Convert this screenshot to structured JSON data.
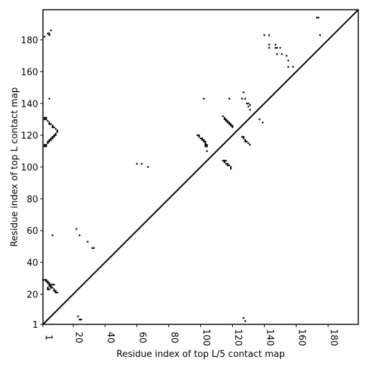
{
  "chart_data": {
    "type": "heatmap",
    "subtype": "contact-map",
    "xlabel": "Residue index of top L/5 contact map",
    "ylabel": "Residue index of top L contact map",
    "xlim": [
      1,
      199
    ],
    "ylim": [
      1,
      199
    ],
    "xticks": [
      1,
      20,
      40,
      60,
      80,
      100,
      120,
      140,
      160,
      180
    ],
    "yticks": [
      1,
      20,
      40,
      60,
      80,
      100,
      120,
      140,
      160,
      180
    ],
    "x_tick_rotation_deg": 90,
    "grid": false,
    "diagonal_line": true,
    "cell_color": "#000000",
    "series": [
      {
        "region": "above-diagonal",
        "points": [
          [
            2,
            131
          ],
          [
            3,
            131
          ],
          [
            2,
            130
          ],
          [
            3,
            130
          ],
          [
            4,
            129
          ],
          [
            5,
            128
          ],
          [
            5,
            127
          ],
          [
            6,
            127
          ],
          [
            7,
            126
          ],
          [
            7,
            125
          ],
          [
            8,
            125
          ],
          [
            9,
            124
          ],
          [
            10,
            123
          ],
          [
            2,
            114
          ],
          [
            2,
            113
          ],
          [
            3,
            113
          ],
          [
            3,
            114
          ],
          [
            4,
            115
          ],
          [
            4,
            116
          ],
          [
            5,
            116
          ],
          [
            5,
            117
          ],
          [
            6,
            117
          ],
          [
            6,
            118
          ],
          [
            7,
            118
          ],
          [
            7,
            119
          ],
          [
            8,
            119
          ],
          [
            8,
            120
          ],
          [
            9,
            120
          ],
          [
            9,
            121
          ],
          [
            10,
            122
          ],
          [
            5,
            143
          ],
          [
            4,
            184
          ],
          [
            5,
            183
          ],
          [
            5,
            184
          ],
          [
            6,
            186
          ],
          [
            2,
            182
          ],
          [
            98,
            120
          ],
          [
            99,
            120
          ],
          [
            99,
            119
          ],
          [
            100,
            118
          ],
          [
            101,
            118
          ],
          [
            101,
            117
          ],
          [
            102,
            117
          ],
          [
            102,
            116
          ],
          [
            103,
            116
          ],
          [
            103,
            115
          ],
          [
            103,
            114
          ],
          [
            104,
            114
          ],
          [
            104,
            113
          ],
          [
            103,
            113
          ],
          [
            104,
            110
          ],
          [
            102,
            143
          ],
          [
            114,
            132
          ],
          [
            115,
            131
          ],
          [
            115,
            130
          ],
          [
            116,
            130
          ],
          [
            116,
            129
          ],
          [
            117,
            129
          ],
          [
            117,
            128
          ],
          [
            118,
            128
          ],
          [
            118,
            127
          ],
          [
            119,
            127
          ],
          [
            119,
            126
          ],
          [
            120,
            126
          ],
          [
            120,
            125
          ],
          [
            114,
            104
          ],
          [
            115,
            104
          ],
          [
            116,
            104
          ],
          [
            115,
            103
          ],
          [
            116,
            102
          ],
          [
            117,
            102
          ],
          [
            117,
            101
          ],
          [
            118,
            101
          ],
          [
            119,
            100
          ],
          [
            119,
            99
          ],
          [
            118,
            143
          ],
          [
            126,
            119
          ],
          [
            127,
            119
          ],
          [
            127,
            118
          ],
          [
            128,
            117
          ],
          [
            128,
            116
          ],
          [
            129,
            116
          ],
          [
            130,
            115
          ],
          [
            131,
            114
          ],
          [
            127,
            147
          ],
          [
            126,
            143
          ],
          [
            128,
            143
          ],
          [
            129,
            140
          ],
          [
            130,
            140
          ],
          [
            131,
            139
          ],
          [
            130,
            138
          ],
          [
            131,
            136
          ],
          [
            137,
            130
          ],
          [
            139,
            128
          ],
          [
            140,
            183
          ],
          [
            143,
            183
          ],
          [
            143,
            177
          ],
          [
            143,
            175
          ],
          [
            147,
            177
          ],
          [
            147,
            175
          ],
          [
            148,
            175
          ],
          [
            150,
            175
          ],
          [
            148,
            171
          ],
          [
            151,
            171
          ],
          [
            154,
            170
          ],
          [
            155,
            167
          ],
          [
            155,
            163
          ],
          [
            158,
            163
          ],
          [
            173,
            194
          ],
          [
            174,
            194
          ],
          [
            175,
            183
          ],
          [
            60,
            102
          ],
          [
            63,
            102
          ],
          [
            67,
            100
          ]
        ]
      },
      {
        "region": "below-diagonal",
        "points": [
          [
            1,
            29
          ],
          [
            2,
            29
          ],
          [
            3,
            29
          ],
          [
            3,
            28
          ],
          [
            4,
            28
          ],
          [
            4,
            27
          ],
          [
            5,
            27
          ],
          [
            5,
            26
          ],
          [
            6,
            26
          ],
          [
            5,
            25
          ],
          [
            6,
            25
          ],
          [
            6,
            24
          ],
          [
            7,
            24
          ],
          [
            8,
            23
          ],
          [
            8,
            22
          ],
          [
            9,
            22
          ],
          [
            9,
            21
          ],
          [
            10,
            21
          ],
          [
            4,
            23
          ],
          [
            5,
            23
          ],
          [
            4,
            24
          ],
          [
            7,
            26
          ],
          [
            8,
            26
          ],
          [
            7,
            57
          ],
          [
            22,
            61
          ],
          [
            24,
            57
          ],
          [
            29,
            53
          ],
          [
            32,
            49
          ],
          [
            33,
            49
          ],
          [
            23,
            6
          ],
          [
            24,
            4
          ],
          [
            25,
            4
          ],
          [
            127,
            5
          ],
          [
            128,
            3
          ]
        ]
      }
    ]
  }
}
